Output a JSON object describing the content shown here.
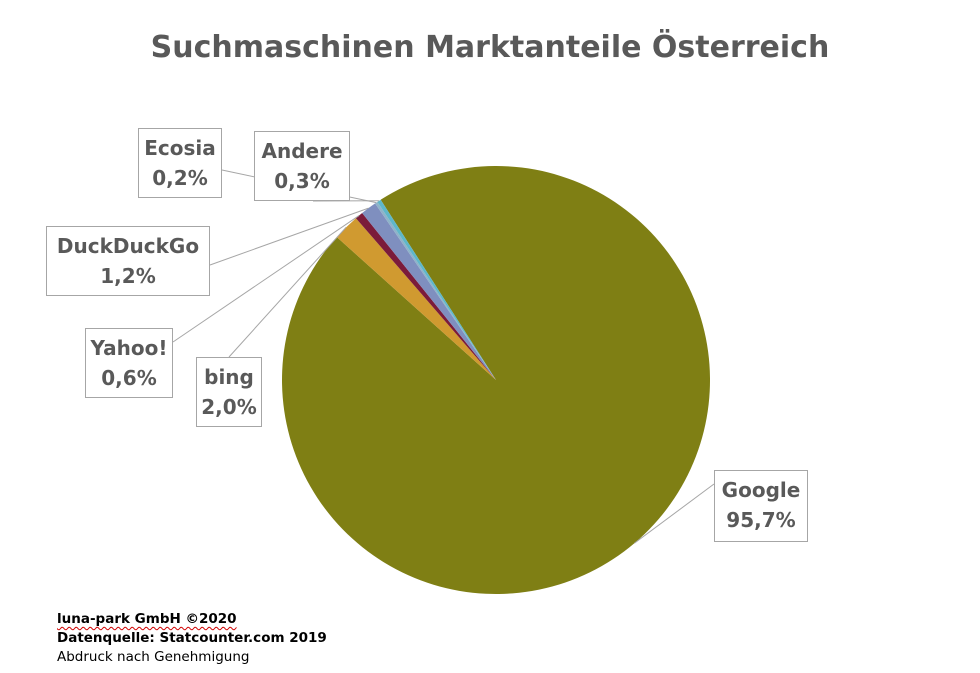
{
  "chart_data": {
    "type": "pie",
    "title": "Suchmaschinen Marktanteile Österreich",
    "slices": [
      {
        "name": "Google",
        "value": 95.7,
        "label": "95,7%",
        "color": "#7f7f14"
      },
      {
        "name": "bing",
        "value": 2.0,
        "label": "2,0%",
        "color": "#d09a30"
      },
      {
        "name": "Yahoo!",
        "value": 0.6,
        "label": "0,6%",
        "color": "#7b1b3a"
      },
      {
        "name": "DuckDuckGo",
        "value": 1.2,
        "label": "1,2%",
        "color": "#7f8fbf"
      },
      {
        "name": "Ecosia",
        "value": 0.2,
        "label": "0,2%",
        "color": "#8fb3c9"
      },
      {
        "name": "Andere",
        "value": 0.3,
        "label": "0,3%",
        "color": "#5fb7c9"
      }
    ]
  },
  "footer": {
    "company": "luna-park GmbH ©2020",
    "source": "Datenquelle: Statcounter.com 2019",
    "note": "Abdruck nach Genehmigung"
  }
}
